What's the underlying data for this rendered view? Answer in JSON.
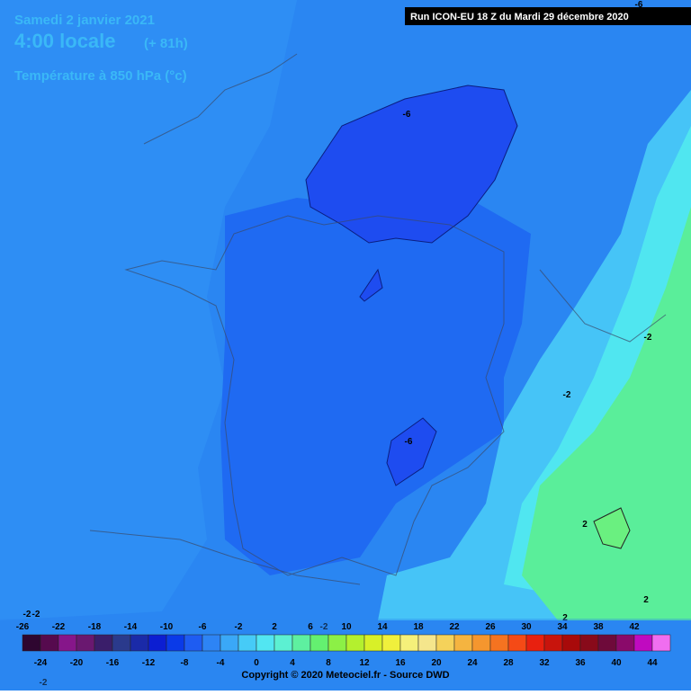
{
  "header": {
    "date": "Samedi 2 janvier 2021",
    "time": "4:00 locale",
    "lead": "(+ 81h)",
    "parameter": "Température à 850 hPa (°c)",
    "run": "Run ICON-EU 18 Z du Mardi 29 décembre 2020"
  },
  "colorbar": {
    "top_labels": [
      -26,
      -22,
      -18,
      -14,
      -10,
      -6,
      -2,
      2,
      6,
      10,
      14,
      18,
      22,
      26,
      30,
      34,
      38,
      42
    ],
    "bottom_labels": [
      -24,
      -20,
      -16,
      -12,
      -8,
      -4,
      0,
      4,
      8,
      12,
      16,
      20,
      24,
      28,
      32,
      36,
      40,
      44
    ],
    "colors": [
      "#2e0630",
      "#560a4e",
      "#86168a",
      "#6a1870",
      "#3a1e6a",
      "#2a3a8c",
      "#1a2aa8",
      "#0c1ed2",
      "#0a3ae8",
      "#1e5cf2",
      "#2d84f5",
      "#3aa8f7",
      "#46cbf7",
      "#52e6f2",
      "#5cf0d2",
      "#5ef0a0",
      "#64f070",
      "#8cf046",
      "#b4f02e",
      "#d8f028",
      "#f0f03c",
      "#f5f07a",
      "#f5e68c",
      "#f5d25a",
      "#f5b440",
      "#f5962e",
      "#f57320",
      "#f54a16",
      "#e8200f",
      "#c8140c",
      "#a80a0a",
      "#880a1a",
      "#6e0a3a",
      "#8a0a6a",
      "#c00ac0",
      "#f06ef0"
    ]
  },
  "map": {
    "contour_labels": [
      "-6",
      "-6",
      "-6",
      "-2",
      "-2",
      "-2",
      "-2",
      "2",
      "2",
      "2",
      "-2",
      "-2"
    ]
  },
  "footer": {
    "copyright": "Copyright © 2020 Meteociel.fr - Source DWD"
  }
}
